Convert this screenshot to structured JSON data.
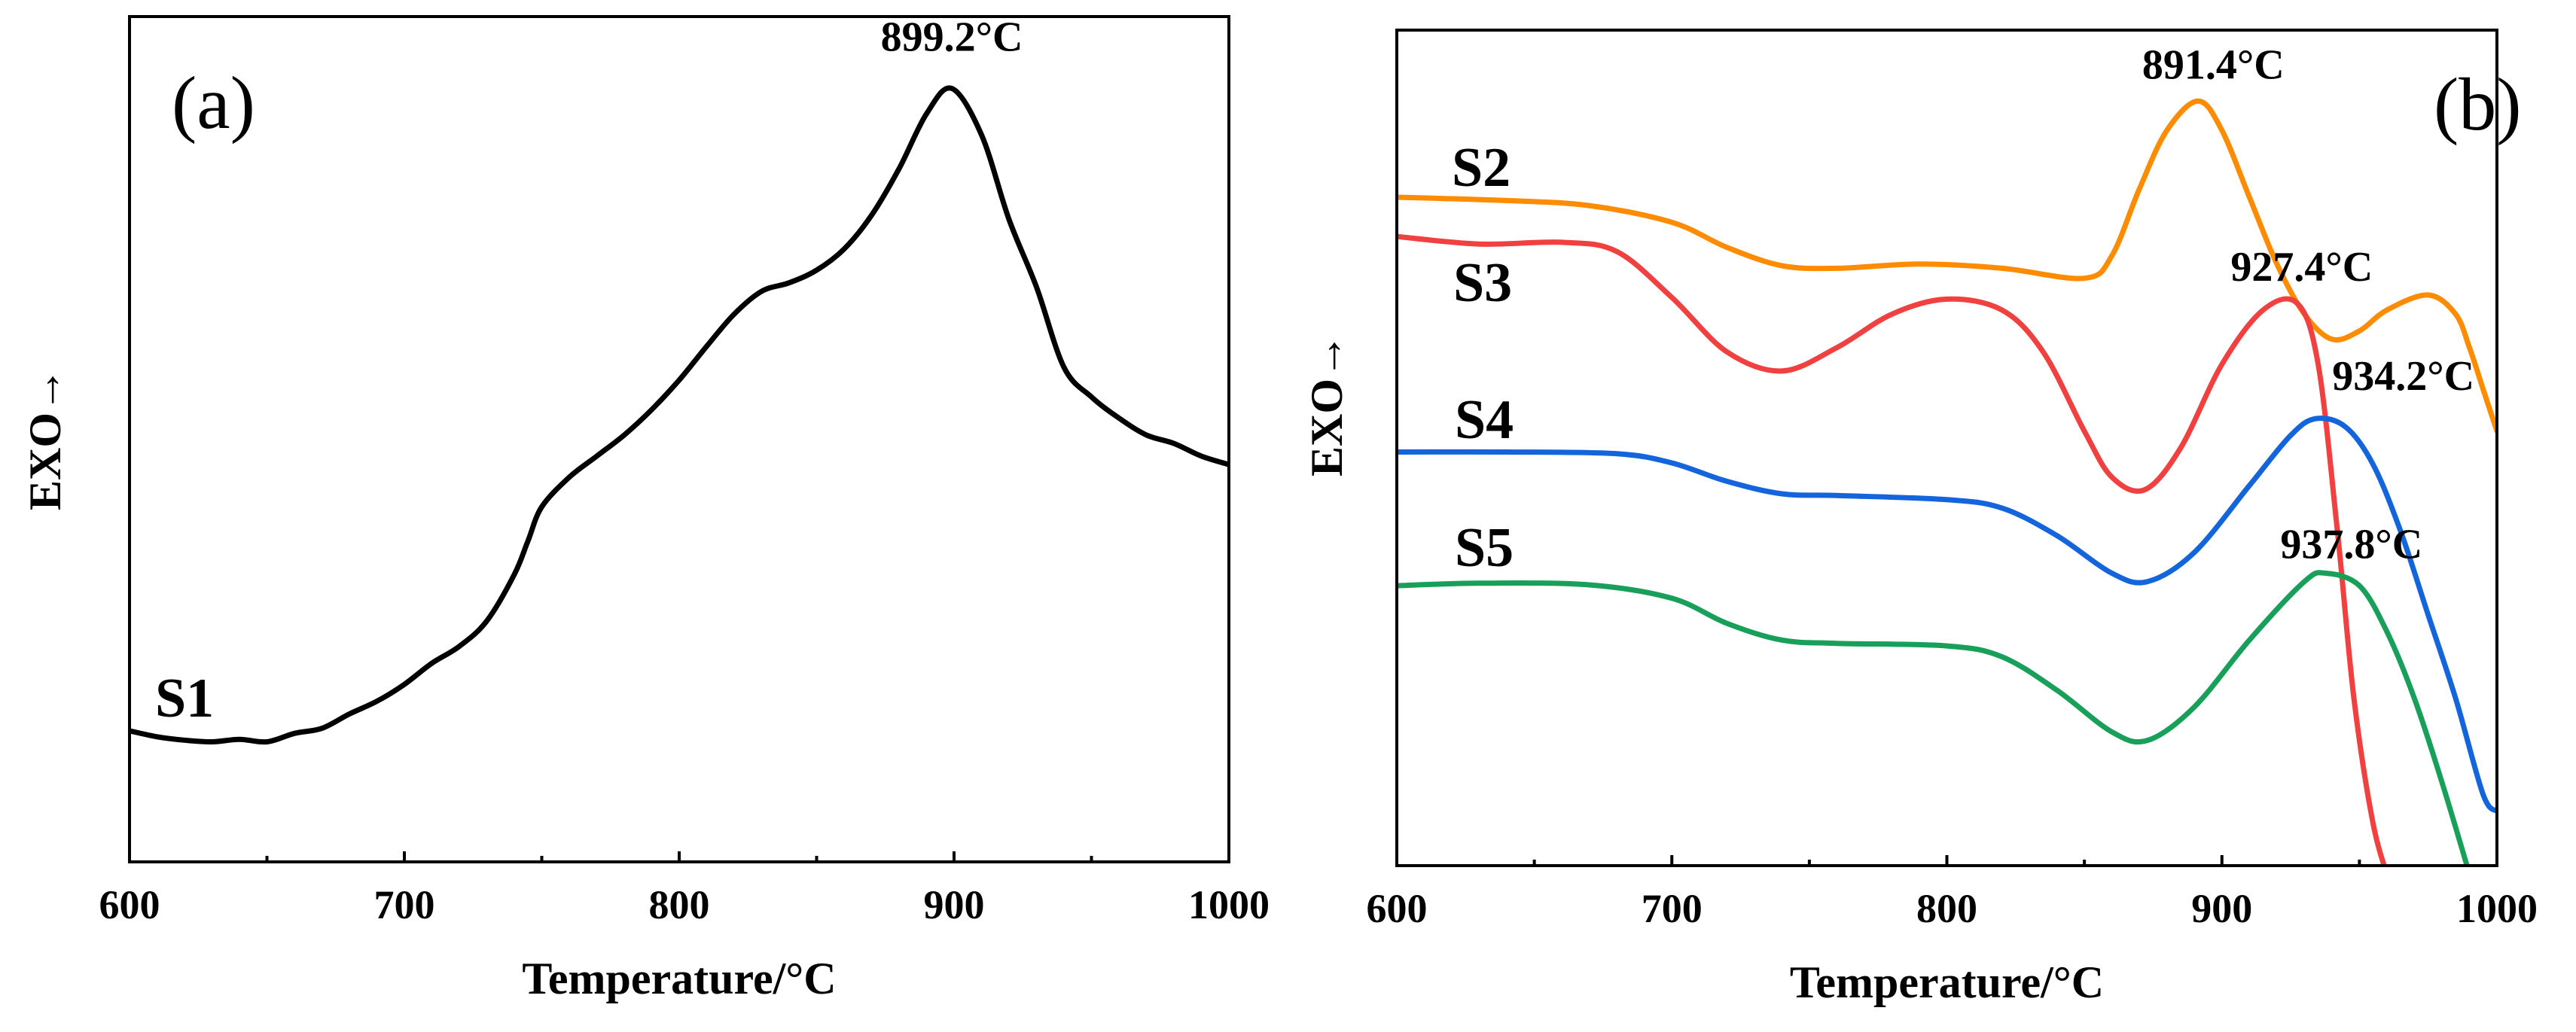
{
  "chart_data": [
    {
      "panel": "(a)",
      "type": "line",
      "xlabel": "Temperature/°C",
      "ylabel": "EXO→",
      "xlim": [
        600,
        1000
      ],
      "ylim": [
        0,
        100
      ],
      "xticks": [
        "600",
        "700",
        "800",
        "900",
        "1000"
      ],
      "y_ticks_shown": false,
      "series": [
        {
          "name": "S1",
          "color": "#000000",
          "x": [
            600,
            610,
            620,
            630,
            640,
            650,
            660,
            670,
            680,
            690,
            700,
            710,
            720,
            730,
            740,
            745,
            750,
            760,
            770,
            780,
            790,
            800,
            810,
            820,
            830,
            840,
            850,
            860,
            870,
            880,
            890,
            899.2,
            910,
            920,
            930,
            940,
            950,
            960,
            970,
            980,
            990,
            1000
          ],
          "y": [
            15.5,
            14.8,
            14.4,
            14.2,
            14.5,
            14.2,
            15.2,
            15.8,
            17.5,
            19.0,
            21.0,
            23.5,
            25.5,
            28.5,
            34.0,
            38.0,
            42.0,
            45.5,
            48.0,
            50.5,
            53.5,
            57.0,
            61.0,
            64.8,
            67.5,
            68.5,
            70.0,
            72.5,
            76.5,
            82.0,
            88.5,
            91.5,
            86.0,
            76.0,
            68.0,
            58.5,
            55.0,
            52.5,
            50.5,
            49.5,
            48.0,
            47.0
          ]
        }
      ],
      "annotations": [
        {
          "text": "899.2°C",
          "x": 899.2,
          "y": 91.5
        }
      ]
    },
    {
      "panel": "(b)",
      "type": "line",
      "xlabel": "Temperature/°C",
      "ylabel": "EXO→",
      "xlim": [
        600,
        1000
      ],
      "ylim": [
        0,
        100
      ],
      "xticks": [
        "600",
        "700",
        "800",
        "900",
        "1000"
      ],
      "y_ticks_shown": false,
      "series": [
        {
          "name": "S2",
          "color": "#ff8c00",
          "x": [
            600,
            640,
            670,
            700,
            720,
            740,
            760,
            790,
            820,
            850,
            860,
            870,
            880,
            891.4,
            900,
            910,
            920,
            930,
            940,
            950,
            960,
            975,
            985,
            990,
            995,
            1000
          ],
          "y": [
            80.0,
            79.6,
            79.0,
            77.0,
            74.0,
            71.8,
            71.5,
            72.0,
            71.5,
            70.3,
            73.0,
            81.0,
            88.0,
            91.5,
            88.0,
            80.0,
            72.0,
            66.0,
            63.0,
            64.0,
            66.5,
            68.3,
            66.0,
            62.0,
            57.0,
            52.0
          ]
        },
        {
          "name": "S3",
          "color": "#f04040",
          "x": [
            600,
            630,
            660,
            680,
            700,
            720,
            740,
            760,
            780,
            800,
            820,
            835,
            850,
            860,
            872,
            885,
            900,
            915,
            927.4,
            935,
            942,
            948,
            955,
            961
          ],
          "y": [
            75.3,
            74.4,
            74.6,
            73.5,
            68.0,
            61.5,
            59.2,
            62.0,
            66.0,
            67.8,
            66.5,
            61.5,
            52.0,
            46.5,
            45.0,
            50.0,
            60.0,
            66.5,
            67.3,
            60.0,
            40.0,
            20.0,
            5.0,
            -2.0
          ]
        },
        {
          "name": "S4",
          "color": "#1464dc",
          "x": [
            600,
            640,
            680,
            700,
            720,
            740,
            760,
            800,
            820,
            840,
            860,
            873,
            890,
            910,
            925,
            934.2,
            945,
            955,
            965,
            975,
            985,
            995,
            1000
          ],
          "y": [
            49.5,
            49.5,
            49.3,
            48.2,
            46.0,
            44.5,
            44.3,
            43.8,
            42.8,
            39.5,
            35.0,
            34.0,
            37.5,
            45.5,
            51.5,
            53.5,
            52.5,
            48.0,
            40.0,
            30.0,
            20.0,
            8.5,
            6.5
          ]
        },
        {
          "name": "S5",
          "color": "#18a05a",
          "x": [
            600,
            630,
            670,
            700,
            720,
            740,
            760,
            800,
            820,
            840,
            860,
            873,
            890,
            910,
            930,
            937.8,
            950,
            960,
            970,
            980,
            990
          ],
          "y": [
            33.5,
            33.8,
            33.6,
            32.0,
            29.0,
            27.0,
            26.6,
            26.3,
            25.0,
            21.0,
            16.0,
            15.0,
            19.0,
            27.0,
            34.0,
            35.0,
            33.5,
            28.0,
            20.0,
            10.0,
            -1.0
          ]
        }
      ],
      "annotations": [
        {
          "text": "891.4°C",
          "x": 891.4,
          "y": 91.5
        },
        {
          "text": "927.4°C",
          "x": 927.4,
          "y": 67.3
        },
        {
          "text": "934.2°C",
          "x": 934.2,
          "y": 53.5
        },
        {
          "text": "937.8°C",
          "x": 937.8,
          "y": 35.0
        }
      ]
    }
  ]
}
